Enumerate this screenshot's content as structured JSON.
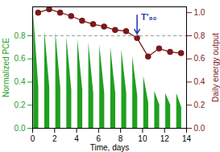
{
  "chart_data": {
    "type": "line",
    "x_label": "Time, days",
    "y_label": "Normalized PCE",
    "y2_label": "Daily energy output",
    "xlim": [
      0,
      14
    ],
    "xticks": [
      0,
      2,
      4,
      6,
      8,
      10,
      12,
      14
    ],
    "ylim": [
      0,
      1.05
    ],
    "yticks": [
      {
        "value": 0,
        "label": "0.0"
      },
      {
        "value": 0.2,
        "label": "0.2"
      },
      {
        "value": 0.4,
        "label": "0.4"
      },
      {
        "value": 0.6,
        "label": "0.6"
      },
      {
        "value": 0.8,
        "label": "0.8"
      }
    ],
    "y2lim": [
      0,
      1.05
    ],
    "y2ticks": [
      {
        "value": 0,
        "label": "0.0"
      },
      {
        "value": 0.2,
        "label": "0.2"
      },
      {
        "value": 0.4,
        "label": "0.4"
      },
      {
        "value": 0.6,
        "label": "0.6"
      },
      {
        "value": 0.8,
        "label": "0.8"
      },
      {
        "value": 1,
        "label": "1.0"
      }
    ],
    "series": [
      {
        "name": "Normalized PCE",
        "type": "area",
        "color": "#1fa01f",
        "x": [
          0.1,
          0.1,
          0.55,
          0.55,
          1.1,
          1.1,
          1.55,
          1.55,
          2.1,
          2.1,
          2.55,
          2.55,
          3.1,
          3.1,
          3.55,
          3.55,
          4.1,
          4.1,
          4.55,
          4.55,
          5.1,
          5.1,
          5.55,
          5.55,
          6.1,
          6.1,
          6.55,
          6.55,
          7.1,
          7.1,
          7.55,
          7.55,
          8.1,
          8.1,
          8.55,
          8.55,
          9.1,
          9.1,
          9.55,
          9.55,
          10.1,
          10.1,
          10.55,
          10.55,
          11.1,
          11.1,
          11.55,
          11.55,
          12.1,
          12.1,
          12.55,
          12.55,
          13.1,
          13.1,
          13.55,
          13.55
        ],
        "values": [
          0,
          0.98,
          0.35,
          0,
          0,
          0.84,
          0.35,
          0,
          0,
          0.83,
          0.35,
          0,
          0,
          0.79,
          0.33,
          0,
          0,
          0.77,
          0.33,
          0,
          0,
          0.74,
          0.3,
          0,
          0,
          0.72,
          0.3,
          0,
          0,
          0.7,
          0.3,
          0,
          0,
          0.68,
          0.3,
          0,
          0,
          0.62,
          0.28,
          0,
          0,
          0.45,
          0.22,
          0,
          0,
          0.32,
          0.2,
          0,
          0,
          0.3,
          0.2,
          0,
          0,
          0.3,
          0.18,
          0
        ]
      },
      {
        "name": "Daily energy output",
        "type": "line",
        "axis": "y2",
        "marker": "circle",
        "color": "#7a1a1a",
        "x": [
          0.5,
          1.5,
          2.5,
          3.5,
          4.5,
          5.5,
          6.5,
          7.5,
          8.5,
          9.5,
          10.5,
          11.5,
          12.5,
          13.5
        ],
        "values": [
          1.0,
          1.03,
          1.0,
          0.97,
          0.93,
          0.9,
          0.88,
          0.85,
          0.84,
          0.78,
          0.62,
          0.69,
          0.66,
          0.65
        ]
      }
    ],
    "reference_lines": [
      {
        "y": 0.8,
        "line_style": "dashed",
        "color": "#9a9a9a"
      }
    ],
    "annotations": [
      {
        "text": "T′₈₀",
        "x": 9.5,
        "y": 0.8,
        "color": "#2a3fb0"
      }
    ]
  }
}
